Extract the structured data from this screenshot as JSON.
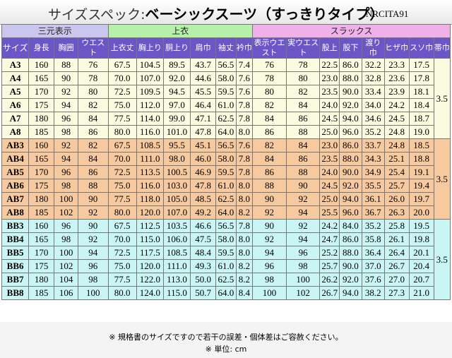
{
  "title": {
    "prefix": "サイズスペック:",
    "name": "ベーシックスーツ（すっきりタイプ）",
    "code": "NRCITA91"
  },
  "groups": {
    "sangen": "三元表示",
    "uwagi": "上衣",
    "slacks": "スラックス"
  },
  "columns": [
    "サイズ",
    "身長",
    "胸囲",
    "ウエスト",
    "上衣丈",
    "胸上り",
    "胴上り",
    "肩巾",
    "袖丈",
    "衿巾",
    "表示ウエスト",
    "実ウエスト",
    "股上",
    "股下",
    "渡り巾",
    "ヒザ巾",
    "スソ巾",
    "帯巾"
  ],
  "sections": [
    {
      "kind": "A",
      "belt": "3.5",
      "rows": [
        [
          "A3",
          "160",
          "88",
          "76",
          "67.5",
          "104.5",
          "89.5",
          "43.7",
          "56.5",
          "7.4",
          "76",
          "78",
          "22.5",
          "86.0",
          "32.2",
          "23.3",
          "17.5"
        ],
        [
          "A4",
          "165",
          "90",
          "78",
          "70.0",
          "107.0",
          "92.0",
          "44.6",
          "58.0",
          "7.6",
          "78",
          "80",
          "23.0",
          "88.0",
          "32.8",
          "23.6",
          "17.8"
        ],
        [
          "A5",
          "170",
          "92",
          "80",
          "72.5",
          "109.5",
          "94.5",
          "45.5",
          "59.5",
          "7.6",
          "80",
          "82",
          "23.5",
          "90.0",
          "33.4",
          "23.9",
          "18.1"
        ],
        [
          "A6",
          "175",
          "94",
          "82",
          "75.0",
          "112.0",
          "97.0",
          "46.4",
          "61.0",
          "7.8",
          "82",
          "84",
          "24.0",
          "92.0",
          "34.0",
          "24.2",
          "18.4"
        ],
        [
          "A7",
          "180",
          "96",
          "84",
          "77.5",
          "114.0",
          "99.0",
          "47.1",
          "62.5",
          "7.8",
          "84",
          "86",
          "24.5",
          "94.0",
          "34.6",
          "24.5",
          "18.7"
        ],
        [
          "A8",
          "185",
          "98",
          "86",
          "80.0",
          "116.0",
          "101.0",
          "47.8",
          "64.0",
          "8.0",
          "86",
          "88",
          "25.0",
          "96.0",
          "35.2",
          "24.8",
          "19.0"
        ]
      ]
    },
    {
      "kind": "AB",
      "belt": "3.5",
      "rows": [
        [
          "AB3",
          "160",
          "92",
          "82",
          "67.5",
          "108.5",
          "95.5",
          "45.1",
          "56.5",
          "7.6",
          "82",
          "84",
          "23.0",
          "86.0",
          "33.7",
          "24.8",
          "18.5"
        ],
        [
          "AB4",
          "165",
          "94",
          "84",
          "70.0",
          "111.0",
          "98.0",
          "46.0",
          "58.0",
          "7.8",
          "84",
          "86",
          "23.5",
          "88.0",
          "34.3",
          "25.1",
          "18.8"
        ],
        [
          "AB5",
          "170",
          "96",
          "86",
          "72.5",
          "113.5",
          "100.5",
          "46.9",
          "59.5",
          "7.8",
          "86",
          "88",
          "24.0",
          "90.0",
          "34.9",
          "25.4",
          "19.1"
        ],
        [
          "AB6",
          "175",
          "98",
          "88",
          "75.0",
          "116.0",
          "103.0",
          "47.8",
          "61.0",
          "8.0",
          "88",
          "90",
          "24.5",
          "92.0",
          "35.5",
          "25.7",
          "19.4"
        ],
        [
          "AB7",
          "180",
          "100",
          "90",
          "77.5",
          "118.0",
          "105.0",
          "48.5",
          "62.5",
          "8.0",
          "90",
          "92",
          "25.0",
          "94.0",
          "36.1",
          "26.0",
          "19.7"
        ],
        [
          "AB8",
          "185",
          "102",
          "92",
          "80.0",
          "120.0",
          "107.0",
          "49.2",
          "64.0",
          "8.2",
          "92",
          "94",
          "25.5",
          "96.0",
          "36.7",
          "26.3",
          "20.0"
        ]
      ]
    },
    {
      "kind": "BB",
      "belt": "3.5",
      "rows": [
        [
          "BB3",
          "160",
          "96",
          "90",
          "67.5",
          "112.5",
          "103.5",
          "46.6",
          "56.5",
          "7.8",
          "90",
          "92",
          "24.2",
          "84.0",
          "35.2",
          "25.8",
          "19.5"
        ],
        [
          "BB4",
          "165",
          "98",
          "92",
          "70.0",
          "115.0",
          "106.0",
          "47.5",
          "58.0",
          "8.0",
          "92",
          "94",
          "24.7",
          "86.0",
          "35.8",
          "26.1",
          "19.8"
        ],
        [
          "BB5",
          "170",
          "100",
          "94",
          "72.5",
          "117.5",
          "108.5",
          "48.4",
          "59.5",
          "8.0",
          "94",
          "96",
          "25.2",
          "88.0",
          "36.4",
          "26.4",
          "20.1"
        ],
        [
          "BB6",
          "175",
          "102",
          "96",
          "75.0",
          "120.0",
          "111.0",
          "49.3",
          "61.0",
          "8.2",
          "96",
          "98",
          "25.7",
          "90.0",
          "37.0",
          "26.7",
          "20.4"
        ],
        [
          "BB7",
          "180",
          "104",
          "98",
          "77.5",
          "122.0",
          "113.0",
          "50.0",
          "62.5",
          "8.2",
          "98",
          "100",
          "26.2",
          "92.0",
          "37.6",
          "27.0",
          "20.7"
        ],
        [
          "BB8",
          "185",
          "106",
          "100",
          "80.0",
          "124.0",
          "115.0",
          "50.7",
          "64.0",
          "8.4",
          "100",
          "102",
          "26.7",
          "94.0",
          "38.2",
          "27.3",
          "21.0"
        ]
      ]
    }
  ],
  "footer": {
    "note": "※ 規格書のサイズですので若干の誤差・個体差はご容赦ください。",
    "unit": "※ 単位: cm"
  }
}
